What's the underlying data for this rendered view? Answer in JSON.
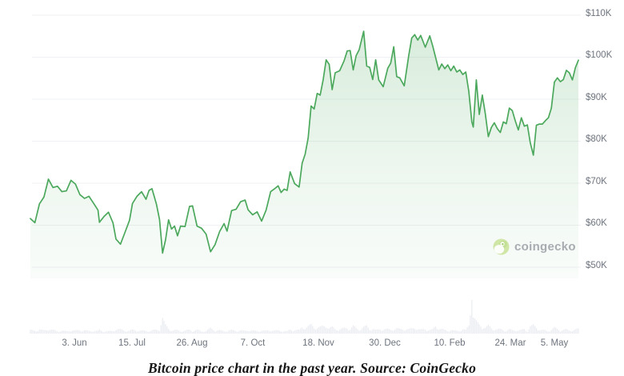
{
  "chart_data": {
    "type": "area",
    "title": "",
    "caption": "Bitcoin price chart in the past year. Source: CoinGecko",
    "series_name": "Bitcoin price",
    "unit": "USD thousands",
    "grid": "horizontal",
    "legend": "none",
    "y_ticks": [
      "$110K",
      "$100K",
      "$90K",
      "$80K",
      "$70K",
      "$60K",
      "$50K"
    ],
    "y_range_thousands": [
      50,
      110
    ],
    "x_ticks": [
      "3. Jun",
      "15. Jul",
      "26. Aug",
      "7. Oct",
      "18. Nov",
      "30. Dec",
      "10. Feb",
      "24. Mar",
      "5. May"
    ],
    "points_format": [
      "date",
      "price_usd_thousands",
      "volume_relative_0_100"
    ],
    "points": [
      [
        "2024-05-09",
        61.2,
        12
      ],
      [
        "2024-05-12",
        60.2,
        10
      ],
      [
        "2024-05-15",
        64.7,
        14
      ],
      [
        "2024-05-18",
        66.3,
        11
      ],
      [
        "2024-05-21",
        70.6,
        16
      ],
      [
        "2024-05-24",
        68.6,
        12
      ],
      [
        "2024-05-27",
        68.9,
        9
      ],
      [
        "2024-05-30",
        67.6,
        10
      ],
      [
        "2024-06-02",
        67.8,
        8
      ],
      [
        "2024-06-05",
        70.3,
        12
      ],
      [
        "2024-06-08",
        69.4,
        10
      ],
      [
        "2024-06-11",
        66.9,
        13
      ],
      [
        "2024-06-14",
        66.0,
        11
      ],
      [
        "2024-06-17",
        66.5,
        9
      ],
      [
        "2024-06-20",
        64.9,
        10
      ],
      [
        "2024-06-23",
        63.2,
        9
      ],
      [
        "2024-06-24",
        60.3,
        13
      ],
      [
        "2024-06-27",
        61.7,
        9
      ],
      [
        "2024-06-30",
        62.7,
        8
      ],
      [
        "2024-07-03",
        60.2,
        10
      ],
      [
        "2024-07-05",
        56.3,
        16
      ],
      [
        "2024-07-08",
        55.1,
        14
      ],
      [
        "2024-07-11",
        57.9,
        11
      ],
      [
        "2024-07-14",
        60.8,
        10
      ],
      [
        "2024-07-16",
        64.8,
        13
      ],
      [
        "2024-07-19",
        66.5,
        11
      ],
      [
        "2024-07-22",
        67.6,
        10
      ],
      [
        "2024-07-25",
        65.8,
        10
      ],
      [
        "2024-07-27",
        67.9,
        9
      ],
      [
        "2024-07-29",
        68.3,
        11
      ],
      [
        "2024-08-01",
        64.6,
        13
      ],
      [
        "2024-08-03",
        61.0,
        15
      ],
      [
        "2024-08-05",
        53.0,
        50
      ],
      [
        "2024-08-07",
        56.1,
        28
      ],
      [
        "2024-08-09",
        60.9,
        18
      ],
      [
        "2024-08-11",
        58.7,
        12
      ],
      [
        "2024-08-13",
        59.4,
        11
      ],
      [
        "2024-08-15",
        57.1,
        12
      ],
      [
        "2024-08-17",
        59.4,
        9
      ],
      [
        "2024-08-20",
        59.3,
        10
      ],
      [
        "2024-08-23",
        64.1,
        13
      ],
      [
        "2024-08-25",
        64.2,
        10
      ],
      [
        "2024-08-28",
        59.4,
        13
      ],
      [
        "2024-08-31",
        58.9,
        8
      ],
      [
        "2024-09-03",
        57.5,
        10
      ],
      [
        "2024-09-06",
        53.3,
        18
      ],
      [
        "2024-09-09",
        55.0,
        12
      ],
      [
        "2024-09-12",
        58.1,
        11
      ],
      [
        "2024-09-15",
        60.0,
        9
      ],
      [
        "2024-09-17",
        58.2,
        10
      ],
      [
        "2024-09-20",
        63.1,
        12
      ],
      [
        "2024-09-23",
        63.4,
        10
      ],
      [
        "2024-09-26",
        65.2,
        11
      ],
      [
        "2024-09-29",
        65.6,
        9
      ],
      [
        "2024-10-01",
        63.3,
        13
      ],
      [
        "2024-10-04",
        62.1,
        10
      ],
      [
        "2024-10-07",
        62.8,
        9
      ],
      [
        "2024-10-10",
        60.6,
        11
      ],
      [
        "2024-10-13",
        63.2,
        9
      ],
      [
        "2024-10-16",
        67.6,
        13
      ],
      [
        "2024-10-19",
        68.4,
        10
      ],
      [
        "2024-10-21",
        69.0,
        11
      ],
      [
        "2024-10-23",
        67.4,
        10
      ],
      [
        "2024-10-25",
        68.2,
        9
      ],
      [
        "2024-10-27",
        67.9,
        8
      ],
      [
        "2024-10-29",
        72.3,
        14
      ],
      [
        "2024-11-01",
        69.5,
        13
      ],
      [
        "2024-11-04",
        68.7,
        12
      ],
      [
        "2024-11-06",
        74.4,
        22
      ],
      [
        "2024-11-08",
        76.5,
        20
      ],
      [
        "2024-11-10",
        80.4,
        24
      ],
      [
        "2024-11-12",
        88.0,
        30
      ],
      [
        "2024-11-14",
        87.3,
        22
      ],
      [
        "2024-11-16",
        91.0,
        20
      ],
      [
        "2024-11-18",
        90.6,
        22
      ],
      [
        "2024-11-20",
        94.3,
        25
      ],
      [
        "2024-11-22",
        99.0,
        28
      ],
      [
        "2024-11-24",
        97.9,
        18
      ],
      [
        "2024-11-26",
        91.9,
        22
      ],
      [
        "2024-11-28",
        95.9,
        16
      ],
      [
        "2024-12-01",
        96.4,
        15
      ],
      [
        "2024-12-04",
        98.8,
        18
      ],
      [
        "2024-12-06",
        101.1,
        20
      ],
      [
        "2024-12-08",
        101.2,
        16
      ],
      [
        "2024-12-10",
        96.6,
        25
      ],
      [
        "2024-12-12",
        100.0,
        18
      ],
      [
        "2024-12-14",
        101.4,
        15
      ],
      [
        "2024-12-17",
        105.8,
        22
      ],
      [
        "2024-12-19",
        97.5,
        25
      ],
      [
        "2024-12-21",
        97.2,
        16
      ],
      [
        "2024-12-23",
        94.3,
        18
      ],
      [
        "2024-12-25",
        99.0,
        12
      ],
      [
        "2024-12-27",
        94.2,
        14
      ],
      [
        "2024-12-30",
        92.6,
        16
      ],
      [
        "2025-01-02",
        97.0,
        15
      ],
      [
        "2025-01-04",
        98.2,
        13
      ],
      [
        "2025-01-06",
        102.1,
        16
      ],
      [
        "2025-01-08",
        95.0,
        18
      ],
      [
        "2025-01-10",
        94.7,
        15
      ],
      [
        "2025-01-13",
        92.8,
        16
      ],
      [
        "2025-01-16",
        100.0,
        15
      ],
      [
        "2025-01-18",
        104.2,
        17
      ],
      [
        "2025-01-20",
        105.0,
        22
      ],
      [
        "2025-01-22",
        103.7,
        16
      ],
      [
        "2025-01-24",
        104.8,
        13
      ],
      [
        "2025-01-27",
        102.0,
        16
      ],
      [
        "2025-01-30",
        104.7,
        12
      ],
      [
        "2025-02-01",
        102.2,
        14
      ],
      [
        "2025-02-03",
        99.4,
        26
      ],
      [
        "2025-02-05",
        96.6,
        18
      ],
      [
        "2025-02-07",
        98.0,
        15
      ],
      [
        "2025-02-09",
        96.9,
        12
      ],
      [
        "2025-02-11",
        97.8,
        11
      ],
      [
        "2025-02-13",
        96.4,
        13
      ],
      [
        "2025-02-15",
        97.5,
        10
      ],
      [
        "2025-02-17",
        96.1,
        10
      ],
      [
        "2025-02-19",
        96.6,
        11
      ],
      [
        "2025-02-21",
        95.5,
        15
      ],
      [
        "2025-02-23",
        96.1,
        12
      ],
      [
        "2025-02-25",
        91.5,
        28
      ],
      [
        "2025-02-27",
        84.2,
        100
      ],
      [
        "2025-02-28",
        83.0,
        55
      ],
      [
        "2025-03-02",
        94.2,
        40
      ],
      [
        "2025-03-04",
        86.0,
        30
      ],
      [
        "2025-03-06",
        90.6,
        24
      ],
      [
        "2025-03-08",
        86.2,
        20
      ],
      [
        "2025-03-10",
        80.7,
        26
      ],
      [
        "2025-03-12",
        82.9,
        20
      ],
      [
        "2025-03-14",
        84.0,
        16
      ],
      [
        "2025-03-16",
        82.6,
        14
      ],
      [
        "2025-03-18",
        81.7,
        15
      ],
      [
        "2025-03-20",
        84.2,
        14
      ],
      [
        "2025-03-22",
        83.8,
        11
      ],
      [
        "2025-03-24",
        87.5,
        14
      ],
      [
        "2025-03-26",
        86.9,
        12
      ],
      [
        "2025-03-28",
        84.4,
        13
      ],
      [
        "2025-03-30",
        82.3,
        11
      ],
      [
        "2025-04-01",
        85.2,
        12
      ],
      [
        "2025-04-03",
        83.2,
        16
      ],
      [
        "2025-04-05",
        83.5,
        10
      ],
      [
        "2025-04-07",
        79.2,
        24
      ],
      [
        "2025-04-09",
        76.3,
        28
      ],
      [
        "2025-04-11",
        83.4,
        22
      ],
      [
        "2025-04-13",
        83.7,
        14
      ],
      [
        "2025-04-15",
        83.7,
        12
      ],
      [
        "2025-04-17",
        84.5,
        11
      ],
      [
        "2025-04-19",
        85.2,
        9
      ],
      [
        "2025-04-21",
        87.5,
        14
      ],
      [
        "2025-04-23",
        93.7,
        20
      ],
      [
        "2025-04-25",
        94.7,
        16
      ],
      [
        "2025-04-27",
        93.8,
        12
      ],
      [
        "2025-04-29",
        94.3,
        13
      ],
      [
        "2025-05-01",
        96.5,
        14
      ],
      [
        "2025-05-03",
        95.9,
        11
      ],
      [
        "2025-05-05",
        94.2,
        12
      ],
      [
        "2025-05-07",
        97.1,
        14
      ],
      [
        "2025-05-09",
        98.9,
        16
      ]
    ]
  },
  "watermark": {
    "label": "coingecko",
    "icon": "gecko-icon"
  },
  "colors": {
    "background": "#ffffff",
    "line": "#4ba85c",
    "area_top": "rgba(75,168,92,0.22)",
    "area_mid": "rgba(75,168,92,0.10)",
    "area_bottom": "rgba(75,168,92,0.03)",
    "grid": "#eff1f4",
    "axis_text": "#6e747e",
    "volume_bar": "#e9ebf0",
    "watermark_text": "#a8acb1",
    "caption_text": "#141414"
  }
}
